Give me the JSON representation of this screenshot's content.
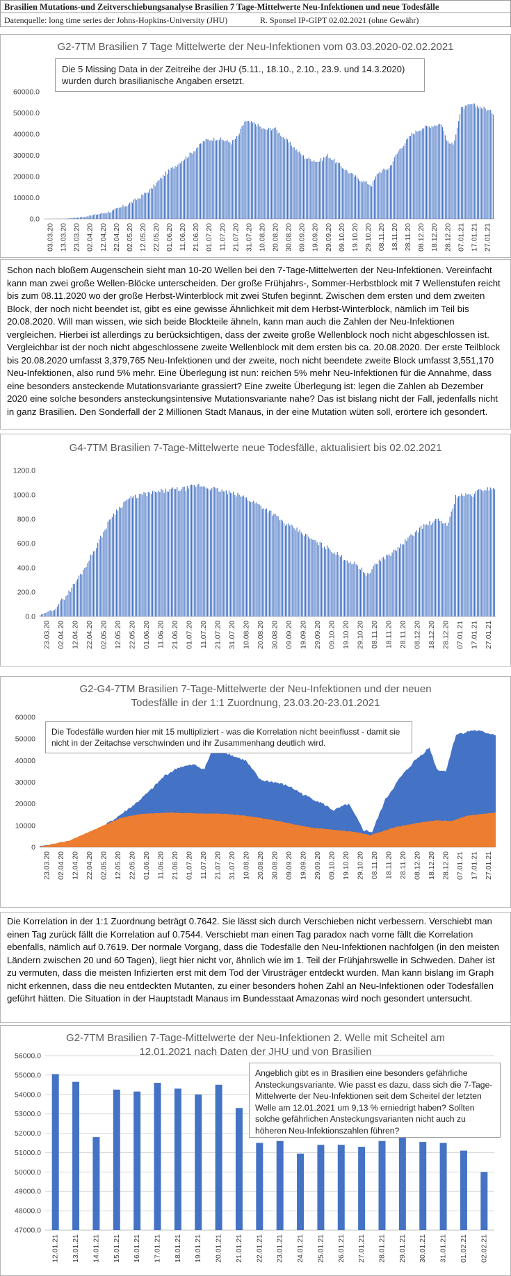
{
  "header": {
    "title": "Brasilien Mutations-und Zeitverschiebungsanalyse Brasilien 7 Tage-Mittelwerte Neu-Infektionen und neue Todesfälle",
    "source": "Datenquelle: long time series der Johns-Hopkins-University (JHU)",
    "author": "R. Sponsel IP-GIPT 02.02.2021 (ohne Gewähr)"
  },
  "text1": "Schon nach bloßem Augenschein sieht man 10-20 Wellen bei den 7-Tage-Mittelwerten der Neu-Infektionen. Vereinfacht kann man zwei große Wellen-Blöcke unterscheiden. Der große Frühjahrs-, Sommer-Herbstblock mit 7 Wellenstufen reicht bis zum 08.11.2020 wo der große Herbst-Winterblock mit zwei Stufen beginnt. Zwischen dem ersten und dem zweiten Block, der noch nicht beendet ist, gibt es eine gewisse Ähnlichkeit mit dem Herbst-Winterblock, nämlich im Teil bis 20.08.2020. Will man wissen, wie sich beide Blockteile ähneln, kann man auch die Zahlen der Neu-Infektionen vergleichen. Hierbei ist allerdings zu berücksichtigen, dass der zweite große Wellenblock noch nicht abgeschlossen ist. Vergleichbar ist der noch nicht abgeschlossene zweite Wellenblock mit dem ersten bis ca. 20.08.2020. Der erste Teilblock bis 20.08.2020 umfasst 3,379,765 Neu-Infektionen und der zweite, noch nicht beendete zweite Block umfasst 3,551,170 Neu-Infektionen, also rund 5% mehr. Eine Überlegung ist nun: reichen 5% mehr Neu-Infektionen für die Annahme, dass eine besonders ansteckende Mutationsvariante grassiert? Eine zweite Überlegung ist: legen die Zahlen ab Dezember 2020 eine solche besonders ansteckungsintensive Mutationsvariante nahe? Das ist bislang nicht der Fall, jedenfalls nicht in ganz Brasilien. Den Sonderfall der 2 Millionen Stadt Manaus, in der eine Mutation wüten soll, erörtere ich gesondert.",
  "text2": "Die Korrelation in der 1:1 Zuordnung beträgt 0.7642. Sie lässt sich durch Verschieben nicht verbessern. Verschiebt man einen Tag zurück fällt die Korrelation auf 0.7544. Verschiebt man einen Tag paradox nach vorne fällt die Korrelation ebenfalls, nämlich auf 0.7619. Der normale Vorgang, dass die Todesfälle den Neu-Infektionen nachfolgen (in den meisten Ländern zwischen 20 und 60 Tagen), liegt hier nicht vor, ähnlich wie im 1. Teil der Frühjahrswelle in Schweden. Daher ist zu vermuten, dass die meisten Infizierten erst mit dem Tod der Virusträger entdeckt wurden. Man kann bislang im Graph nicht erkennen, dass die neu entdeckten Mutanten, zu einer besonders hohen Zahl an Neu-Infektionen oder Todesfällen geführt hätten. Die Situation in der Hauptstadt Manaus im Bundesstaat Amazonas wird noch gesondert untersucht.",
  "colors": {
    "bar": "#4472c4",
    "area_blue": "#4472c4",
    "area_orange": "#ed7d31",
    "axis_text": "#404040",
    "title": "#595959"
  },
  "chart_data": [
    {
      "type": "bar",
      "title": "G2-7TM Brasilien 7 Tage Mittelwerte der Neu-Infektionen vom 03.03.2020-02.02.2021",
      "note": "Die 5 Missing Data in der Zeitreihe der JHU (5.11., 18.10., 2.10., 23.9. und 14.3.2020) wurden durch brasilianische Angaben ersetzt.",
      "ylim": [
        0,
        60000
      ],
      "yticks": [
        "0.0",
        "10000.0",
        "20000.0",
        "30000.0",
        "40000.0",
        "50000.0",
        "60000.0"
      ],
      "xticks": [
        "03.03.20",
        "13.03.20",
        "23.03.20",
        "02.04.20",
        "12.04.20",
        "22.04.20",
        "02.05.20",
        "12.05.20",
        "22.05.20",
        "01.06.20",
        "11.06.20",
        "21.06.20",
        "01.07.20",
        "11.07.20",
        "21.07.20",
        "31.07.20",
        "10.08.20",
        "20.08.20",
        "30.08.20",
        "09.09.20",
        "19.09.20",
        "29.09.20",
        "09.10.20",
        "19.10.20",
        "29.10.20",
        "08.11.20",
        "18.11.20",
        "28.11.20",
        "08.12.20",
        "18.12.20",
        "28.12.20",
        "07.01.21",
        "17.01.21",
        "27.01.21"
      ],
      "anchors": [
        [
          0,
          0
        ],
        [
          15,
          50
        ],
        [
          30,
          1000
        ],
        [
          50,
          3500
        ],
        [
          60,
          6000
        ],
        [
          70,
          9500
        ],
        [
          80,
          14000
        ],
        [
          90,
          21000
        ],
        [
          100,
          26000
        ],
        [
          110,
          31000
        ],
        [
          120,
          37000
        ],
        [
          130,
          38000
        ],
        [
          140,
          36000
        ],
        [
          145,
          39000
        ],
        [
          150,
          46000
        ],
        [
          158,
          45000
        ],
        [
          165,
          42000
        ],
        [
          172,
          43000
        ],
        [
          180,
          38000
        ],
        [
          188,
          33000
        ],
        [
          195,
          29000
        ],
        [
          205,
          27000
        ],
        [
          212,
          30000
        ],
        [
          220,
          26000
        ],
        [
          230,
          21000
        ],
        [
          238,
          18000
        ],
        [
          245,
          16000
        ],
        [
          250,
          22000
        ],
        [
          258,
          24000
        ],
        [
          265,
          32000
        ],
        [
          275,
          40000
        ],
        [
          283,
          43000
        ],
        [
          290,
          44000
        ],
        [
          297,
          45000
        ],
        [
          302,
          36000
        ],
        [
          306,
          35000
        ],
        [
          312,
          52000
        ],
        [
          320,
          54000
        ],
        [
          330,
          52000
        ],
        [
          336,
          50000
        ]
      ],
      "noise": 1800
    },
    {
      "type": "bar",
      "title": "G4-7TM Brasilien 7-Tage-Mittelwerte neue Todesfälle, aktualisiert bis 02.02.2021",
      "ylim": [
        0,
        1200
      ],
      "yticks": [
        "0.0",
        "200.0",
        "400.0",
        "600.0",
        "800.0",
        "1000.0",
        "1200.0"
      ],
      "xticks": [
        "23.03.20",
        "02.04.20",
        "12.04.20",
        "22.04.20",
        "02.05.20",
        "12.05.20",
        "22.05.20",
        "01.06.20",
        "11.06.20",
        "21.06.20",
        "01.07.20",
        "11.07.20",
        "21.07.20",
        "31.07.20",
        "10.08.20",
        "20.08.20",
        "30.08.20",
        "09.09.20",
        "19.09.20",
        "29.09.20",
        "09.10.20",
        "19.10.20",
        "29.10.20",
        "08.11.20",
        "18.11.20",
        "28.11.20",
        "08.12.20",
        "18.12.20",
        "28.12.20",
        "07.01.21",
        "17.01.21",
        "27.01.21"
      ],
      "anchors": [
        [
          0,
          10
        ],
        [
          10,
          60
        ],
        [
          20,
          200
        ],
        [
          30,
          380
        ],
        [
          40,
          600
        ],
        [
          50,
          830
        ],
        [
          60,
          960
        ],
        [
          70,
          1000
        ],
        [
          80,
          1020
        ],
        [
          90,
          1040
        ],
        [
          100,
          1050
        ],
        [
          110,
          1080
        ],
        [
          120,
          1050
        ],
        [
          130,
          1020
        ],
        [
          140,
          990
        ],
        [
          150,
          930
        ],
        [
          160,
          860
        ],
        [
          170,
          760
        ],
        [
          180,
          700
        ],
        [
          190,
          620
        ],
        [
          200,
          560
        ],
        [
          210,
          480
        ],
        [
          220,
          420
        ],
        [
          227,
          340
        ],
        [
          235,
          460
        ],
        [
          245,
          530
        ],
        [
          255,
          640
        ],
        [
          265,
          740
        ],
        [
          275,
          790
        ],
        [
          283,
          760
        ],
        [
          288,
          990
        ],
        [
          300,
          1000
        ],
        [
          305,
          1040
        ],
        [
          315,
          1060
        ]
      ],
      "noise": 40
    },
    {
      "type": "area",
      "title": "G2-G4-7TM Brasilien 7-Tage-Mittelwerte der Neu-Infektionen und der neuen Todesfälle in der 1:1 Zuordnung, 23.03.20-23.01.2021",
      "note": "Die Todesfälle wurden hier mit 15 multipliziert - was die Korrelation nicht beeinflusst - damit sie nicht in der Zeitachse verschwinden und ihr Zusammenhang deutlich wird.",
      "ylim": [
        0,
        60000
      ],
      "yticks": [
        "0",
        "10000",
        "20000",
        "30000",
        "40000",
        "50000",
        "60000"
      ],
      "xticks": [
        "23.03.20",
        "02.04.20",
        "12.04.20",
        "22.04.20",
        "02.05.20",
        "12.05.20",
        "22.05.20",
        "01.06.20",
        "11.06.20",
        "21.06.20",
        "01.07.20",
        "11.07.20",
        "21.07.20",
        "31.07.20",
        "10.08.20",
        "20.08.20",
        "30.08.20",
        "09.09.20",
        "19.09.20",
        "29.09.20",
        "09.10.20",
        "19.10.20",
        "29.10.20",
        "08.11.20",
        "18.11.20",
        "28.11.20",
        "08.12.20",
        "18.12.20",
        "28.12.20",
        "07.01.21",
        "17.01.21",
        "27.01.21"
      ],
      "series": [
        {
          "values_anchors": [
            [
              0,
              500
            ],
            [
              20,
              2500
            ],
            [
              40,
              8000
            ],
            [
              55,
              15000
            ],
            [
              65,
              20000
            ],
            [
              75,
              26000
            ],
            [
              85,
              33000
            ],
            [
              95,
              37000
            ],
            [
              105,
              38000
            ],
            [
              112,
              36000
            ],
            [
              118,
              46000
            ],
            [
              126,
              44000
            ],
            [
              132,
              42000
            ],
            [
              140,
              40000
            ],
            [
              150,
              31000
            ],
            [
              160,
              30000
            ],
            [
              170,
              28000
            ],
            [
              180,
              24000
            ],
            [
              190,
              21000
            ],
            [
              200,
              17000
            ],
            [
              210,
              20000
            ],
            [
              220,
              8000
            ],
            [
              226,
              7000
            ],
            [
              235,
              22000
            ],
            [
              245,
              32000
            ],
            [
              255,
              40000
            ],
            [
              265,
              46000
            ],
            [
              270,
              36000
            ],
            [
              276,
              35000
            ],
            [
              283,
              52000
            ],
            [
              295,
              54000
            ],
            [
              310,
              52000
            ]
          ]
        },
        {
          "values_anchors": [
            [
              0,
              150
            ],
            [
              20,
              3000
            ],
            [
              40,
              9000
            ],
            [
              55,
              13500
            ],
            [
              70,
              15500
            ],
            [
              90,
              16000
            ],
            [
              110,
              15500
            ],
            [
              125,
              15500
            ],
            [
              140,
              14500
            ],
            [
              155,
              13000
            ],
            [
              170,
              11000
            ],
            [
              185,
              9000
            ],
            [
              200,
              8000
            ],
            [
              215,
              7000
            ],
            [
              225,
              5500
            ],
            [
              240,
              9000
            ],
            [
              255,
              11000
            ],
            [
              270,
              12500
            ],
            [
              280,
              12000
            ],
            [
              290,
              14500
            ],
            [
              310,
              16000
            ]
          ]
        }
      ],
      "noise": 1200
    },
    {
      "type": "bar",
      "title": "G2-7TM Brasilien 7-Tage-Mittelwerte der Neu-Infektionen 2. Welle mit Scheitel am 12.01.2021 nach Daten der JHU und von Brasilien",
      "note": "Angeblich gibt es in Brasilien eine besonders gefährliche Ansteckungsvariante. Wie passt es dazu, dass sich die 7-Tage-Mittelwerte der Neu-Infektionen seit dem Scheitel der letzten Welle am 12.01.2021 um 9,13 % erniedrigt haben? Sollten solche gefährlichen Ansteckungsvarianten nicht auch zu höheren Neu-Infektionszahlen führen?",
      "ylim": [
        47000,
        56000
      ],
      "yticks": [
        "47000.0",
        "48000.0",
        "49000.0",
        "50000.0",
        "51000.0",
        "52000.0",
        "53000.0",
        "54000.0",
        "55000.0",
        "56000.0"
      ],
      "categories": [
        "12.01.21",
        "13.01.21",
        "14.01.21",
        "15.01.21",
        "16.01.21",
        "17.01.21",
        "18.01.21",
        "19.01.21",
        "20.01.21",
        "21.01.21",
        "22.01.21",
        "23.01.21",
        "24.01.21",
        "25.01.21",
        "26.01.21",
        "27.01.21",
        "28.01.21",
        "29.01.21",
        "30.01.21",
        "31.01.21",
        "01.02.21",
        "02.02.21"
      ],
      "values": [
        55050,
        54650,
        51800,
        54250,
        54150,
        54600,
        54300,
        54000,
        54500,
        53300,
        51500,
        51600,
        50950,
        51400,
        51400,
        51300,
        51600,
        52000,
        51550,
        51500,
        51100,
        50000
      ]
    }
  ]
}
